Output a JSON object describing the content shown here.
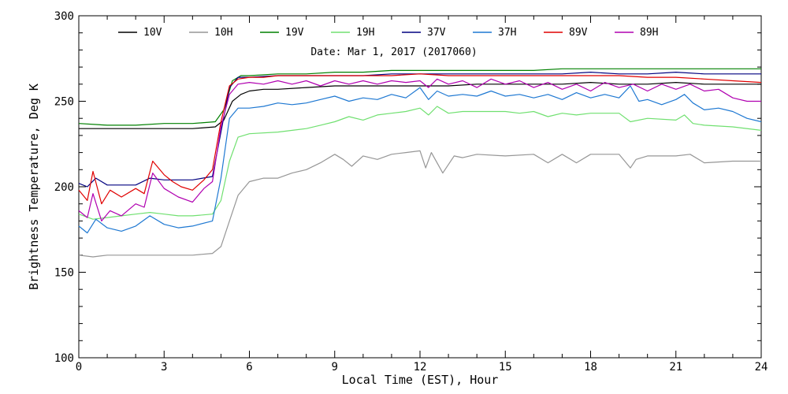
{
  "chart_data": {
    "type": "line",
    "title": "",
    "annotation": "Date: Mar  1, 2017 (2017060)",
    "xlabel": "Local Time (EST), Hour",
    "ylabel": "Brightness Temperature, Deg K",
    "xlim": [
      0,
      24
    ],
    "ylim": [
      100,
      300
    ],
    "xticks": [
      0,
      3,
      6,
      9,
      12,
      15,
      18,
      21,
      24
    ],
    "yticks": [
      100,
      150,
      200,
      250,
      300
    ],
    "xtick_labels": [
      "0",
      "3",
      "6",
      "9",
      "12",
      "15",
      "18",
      "21",
      "24"
    ],
    "ytick_labels": [
      "100",
      "150",
      "200",
      "250",
      "300"
    ],
    "grid": false,
    "legend_position": "top",
    "series": [
      {
        "name": "10V",
        "color": "#000000",
        "x": [
          0,
          1,
          2,
          3,
          4,
          4.8,
          5.1,
          5.4,
          5.7,
          6,
          6.5,
          7,
          8,
          9,
          10,
          11,
          12,
          13,
          14,
          15,
          16,
          17,
          18,
          19,
          20,
          21,
          22,
          23,
          24
        ],
        "y": [
          234,
          234,
          234,
          234,
          234,
          235,
          239,
          250,
          254,
          256,
          257,
          257,
          258,
          259,
          259,
          259,
          259,
          259,
          260,
          260,
          260,
          260,
          261,
          260,
          260,
          261,
          260,
          260,
          260
        ]
      },
      {
        "name": "10H",
        "color": "#969696",
        "x": [
          0,
          0.5,
          1,
          2,
          3,
          4,
          4.7,
          5,
          5.3,
          5.6,
          6,
          6.5,
          7,
          7.5,
          8,
          8.5,
          9,
          9.3,
          9.6,
          10,
          10.5,
          11,
          11.5,
          12,
          12.2,
          12.4,
          12.8,
          13.2,
          13.5,
          14,
          15,
          16,
          16.5,
          17,
          17.5,
          18,
          19,
          19.4,
          19.6,
          20,
          21,
          21.5,
          22,
          23,
          24
        ],
        "y": [
          160,
          159,
          160,
          160,
          160,
          160,
          161,
          165,
          180,
          195,
          203,
          205,
          205,
          208,
          210,
          214,
          219,
          216,
          212,
          218,
          216,
          219,
          220,
          221,
          211,
          220,
          208,
          218,
          217,
          219,
          218,
          219,
          214,
          219,
          214,
          219,
          219,
          211,
          216,
          218,
          218,
          219,
          214,
          215,
          215
        ]
      },
      {
        "name": "19V",
        "color": "#008000",
        "x": [
          0,
          1,
          2,
          3,
          4,
          4.8,
          5.1,
          5.4,
          5.7,
          6,
          7,
          8,
          9,
          10,
          11,
          12,
          13,
          14,
          15,
          16,
          17,
          18,
          19,
          20,
          21,
          22,
          23,
          24
        ],
        "y": [
          237,
          236,
          236,
          237,
          237,
          238,
          245,
          262,
          265,
          265,
          266,
          266,
          267,
          267,
          268,
          268,
          268,
          268,
          268,
          268,
          269,
          269,
          269,
          269,
          269,
          269,
          269,
          269
        ]
      },
      {
        "name": "19H",
        "color": "#70e070",
        "x": [
          0,
          0.5,
          1,
          1.5,
          2,
          2.5,
          3,
          3.5,
          4,
          4.7,
          5,
          5.3,
          5.6,
          6,
          7,
          8,
          8.5,
          9,
          9.5,
          10,
          10.5,
          11,
          11.5,
          12,
          12.3,
          12.6,
          13,
          13.5,
          14,
          15,
          15.5,
          16,
          16.5,
          17,
          17.5,
          18,
          19,
          19.4,
          20,
          21,
          21.3,
          21.6,
          22,
          23,
          24
        ],
        "y": [
          184,
          181,
          182,
          183,
          184,
          185,
          184,
          183,
          183,
          184,
          192,
          215,
          229,
          231,
          232,
          234,
          236,
          238,
          241,
          239,
          242,
          243,
          244,
          246,
          242,
          247,
          243,
          244,
          244,
          244,
          243,
          244,
          241,
          243,
          242,
          243,
          243,
          238,
          240,
          239,
          242,
          237,
          236,
          235,
          233
        ]
      },
      {
        "name": "37V",
        "color": "#000080",
        "x": [
          0,
          0.3,
          0.6,
          1,
          2,
          2.5,
          3,
          4,
          4.7,
          5,
          5.3,
          5.6,
          6,
          7,
          8,
          9,
          10,
          11,
          12,
          13,
          14,
          15,
          16,
          17,
          18,
          19,
          20,
          21,
          22,
          23,
          24
        ],
        "y": [
          202,
          200,
          205,
          201,
          201,
          205,
          204,
          204,
          206,
          232,
          258,
          264,
          264,
          265,
          265,
          265,
          265,
          266,
          266,
          266,
          266,
          266,
          266,
          266,
          267,
          266,
          266,
          267,
          266,
          266,
          266
        ]
      },
      {
        "name": "37H",
        "color": "#1e78d2",
        "x": [
          0,
          0.3,
          0.6,
          1,
          1.5,
          2,
          2.5,
          3,
          3.5,
          4,
          4.7,
          5,
          5.3,
          5.6,
          6,
          6.5,
          7,
          7.5,
          8,
          8.5,
          9,
          9.5,
          10,
          10.5,
          11,
          11.5,
          12,
          12.3,
          12.6,
          13,
          13.5,
          14,
          14.5,
          15,
          15.5,
          16,
          16.5,
          17,
          17.5,
          18,
          18.5,
          19,
          19.4,
          19.7,
          20,
          20.5,
          21,
          21.3,
          21.6,
          22,
          22.5,
          23,
          23.5,
          24
        ],
        "y": [
          177,
          173,
          181,
          176,
          174,
          177,
          183,
          178,
          176,
          177,
          180,
          205,
          240,
          246,
          246,
          247,
          249,
          248,
          249,
          251,
          253,
          250,
          252,
          251,
          254,
          252,
          258,
          251,
          256,
          253,
          254,
          253,
          256,
          253,
          254,
          252,
          254,
          251,
          255,
          252,
          254,
          252,
          259,
          250,
          251,
          248,
          251,
          254,
          249,
          245,
          246,
          244,
          240,
          238
        ]
      },
      {
        "name": "89V",
        "color": "#e00000",
        "x": [
          0,
          0.3,
          0.5,
          0.8,
          1.1,
          1.5,
          2,
          2.3,
          2.6,
          3,
          3.3,
          3.6,
          4,
          4.4,
          4.7,
          5,
          5.3,
          5.6,
          6,
          6.5,
          7,
          8,
          9,
          10,
          11,
          12,
          13,
          14,
          15,
          16,
          17,
          18,
          19,
          20,
          21,
          22,
          23,
          24
        ],
        "y": [
          198,
          192,
          209,
          190,
          198,
          194,
          199,
          196,
          215,
          207,
          203,
          200,
          198,
          204,
          210,
          238,
          259,
          263,
          264,
          264,
          265,
          265,
          265,
          265,
          265,
          266,
          265,
          265,
          265,
          265,
          265,
          265,
          265,
          264,
          264,
          263,
          262,
          261
        ]
      },
      {
        "name": "89H",
        "color": "#b000b0",
        "x": [
          0,
          0.3,
          0.5,
          0.8,
          1.1,
          1.5,
          2,
          2.3,
          2.6,
          3,
          3.5,
          4,
          4.4,
          4.7,
          5,
          5.3,
          5.6,
          6,
          6.5,
          7,
          7.5,
          8,
          8.5,
          9,
          9.5,
          10,
          10.5,
          11,
          11.5,
          12,
          12.3,
          12.6,
          13,
          13.5,
          14,
          14.5,
          15,
          15.5,
          16,
          16.5,
          17,
          17.5,
          18,
          18.5,
          19,
          19.5,
          20,
          20.5,
          21,
          21.5,
          22,
          22.5,
          23,
          23.5,
          24
        ],
        "y": [
          186,
          182,
          196,
          180,
          186,
          183,
          190,
          188,
          208,
          199,
          194,
          191,
          199,
          203,
          235,
          254,
          260,
          261,
          260,
          262,
          260,
          262,
          259,
          262,
          260,
          262,
          260,
          262,
          261,
          262,
          258,
          263,
          260,
          262,
          258,
          263,
          260,
          262,
          258,
          261,
          257,
          260,
          256,
          261,
          258,
          260,
          256,
          260,
          257,
          260,
          256,
          257,
          252,
          250,
          250
        ]
      }
    ]
  }
}
